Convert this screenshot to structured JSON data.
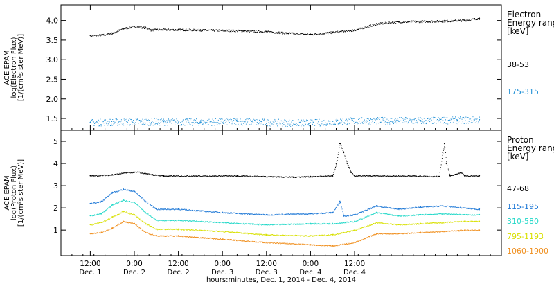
{
  "chart_data": [
    {
      "type": "scatter",
      "panel": "electron",
      "ylabel_lines": [
        "ACE EPAM",
        "log(Electron Flux)",
        "[1/(cm²s ster MeV)]"
      ],
      "ylim": [
        1.2,
        4.4
      ],
      "yticks": [
        1.5,
        2.0,
        2.5,
        3.0,
        3.5,
        4.0
      ],
      "ytick_labels": [
        "1.5",
        "2.0",
        "2.5",
        "3.0",
        "3.5",
        "4.0"
      ],
      "legend_title_lines": [
        "Electron",
        "Energy ranges",
        "[keV]"
      ],
      "series": [
        {
          "name": "38-53",
          "color": "#000000",
          "points": [
            [
              0,
              3.62
            ],
            [
              3,
              3.63
            ],
            [
              6,
              3.68
            ],
            [
              9,
              3.8
            ],
            [
              12,
              3.85
            ],
            [
              15,
              3.82
            ],
            [
              16.5,
              3.76
            ],
            [
              18,
              3.77
            ],
            [
              24,
              3.77
            ],
            [
              30,
              3.76
            ],
            [
              36,
              3.75
            ],
            [
              42,
              3.74
            ],
            [
              48,
              3.72
            ],
            [
              54,
              3.68
            ],
            [
              60,
              3.65
            ],
            [
              66,
              3.7
            ],
            [
              72,
              3.76
            ],
            [
              78,
              3.92
            ],
            [
              84,
              3.97
            ],
            [
              90,
              3.98
            ],
            [
              96,
              3.99
            ],
            [
              102,
              4.01
            ],
            [
              106,
              4.06
            ]
          ]
        },
        {
          "name": "175-315",
          "color": "#1e8fd6",
          "points": [
            [
              0,
              1.4
            ],
            [
              10,
              1.42
            ],
            [
              20,
              1.42
            ],
            [
              30,
              1.41
            ],
            [
              40,
              1.43
            ],
            [
              50,
              1.4
            ],
            [
              60,
              1.39
            ],
            [
              70,
              1.44
            ],
            [
              80,
              1.45
            ],
            [
              90,
              1.45
            ],
            [
              100,
              1.46
            ],
            [
              106,
              1.47
            ]
          ]
        }
      ]
    },
    {
      "type": "scatter",
      "panel": "proton",
      "ylabel_lines": [
        "ACE EPAM",
        "log(Proton Flux)",
        "[1/(cm²s ster MeV)]"
      ],
      "ylim": [
        -0.15,
        5.5
      ],
      "yticks": [
        1,
        2,
        3,
        4,
        5
      ],
      "ytick_labels": [
        "1",
        "2",
        "3",
        "4",
        "5"
      ],
      "legend_title_lines": [
        "Proton",
        "Energy ranges",
        "[keV]"
      ],
      "series": [
        {
          "name": "47-68",
          "color": "#000000",
          "points": [
            [
              0,
              3.45
            ],
            [
              6,
              3.5
            ],
            [
              10,
              3.6
            ],
            [
              13,
              3.62
            ],
            [
              17,
              3.5
            ],
            [
              20,
              3.45
            ],
            [
              40,
              3.45
            ],
            [
              55,
              3.4
            ],
            [
              60,
              3.42
            ],
            [
              66,
              3.45
            ],
            [
              67,
              4.0
            ],
            [
              68,
              4.9
            ],
            [
              69,
              4.5
            ],
            [
              70,
              4.0
            ],
            [
              71,
              3.6
            ],
            [
              72,
              3.45
            ],
            [
              88,
              3.45
            ],
            [
              95,
              3.42
            ],
            [
              96,
              4.5
            ],
            [
              96.5,
              4.9
            ],
            [
              97,
              4.0
            ],
            [
              98,
              3.45
            ],
            [
              101,
              3.6
            ],
            [
              102,
              3.45
            ],
            [
              106,
              3.45
            ]
          ]
        },
        {
          "name": "115-195",
          "color": "#1e78d6",
          "points": [
            [
              0,
              2.2
            ],
            [
              3,
              2.3
            ],
            [
              6,
              2.7
            ],
            [
              9,
              2.85
            ],
            [
              12,
              2.75
            ],
            [
              15,
              2.3
            ],
            [
              18,
              1.95
            ],
            [
              24,
              1.95
            ],
            [
              36,
              1.8
            ],
            [
              48,
              1.7
            ],
            [
              60,
              1.75
            ],
            [
              66,
              1.8
            ],
            [
              68,
              2.3
            ],
            [
              69,
              1.65
            ],
            [
              72,
              1.7
            ],
            [
              78,
              2.1
            ],
            [
              84,
              1.95
            ],
            [
              90,
              2.05
            ],
            [
              96,
              2.1
            ],
            [
              102,
              2.0
            ],
            [
              106,
              1.95
            ]
          ]
        },
        {
          "name": "310-580",
          "color": "#22d8c8",
          "points": [
            [
              0,
              1.65
            ],
            [
              3,
              1.75
            ],
            [
              6,
              2.15
            ],
            [
              9,
              2.35
            ],
            [
              12,
              2.25
            ],
            [
              15,
              1.8
            ],
            [
              18,
              1.45
            ],
            [
              24,
              1.45
            ],
            [
              36,
              1.35
            ],
            [
              48,
              1.25
            ],
            [
              60,
              1.3
            ],
            [
              66,
              1.3
            ],
            [
              72,
              1.4
            ],
            [
              78,
              1.8
            ],
            [
              84,
              1.65
            ],
            [
              90,
              1.7
            ],
            [
              96,
              1.75
            ],
            [
              102,
              1.7
            ],
            [
              106,
              1.7
            ]
          ]
        },
        {
          "name": "795-1193",
          "color": "#d8e000",
          "points": [
            [
              0,
              1.25
            ],
            [
              3,
              1.35
            ],
            [
              6,
              1.6
            ],
            [
              9,
              1.85
            ],
            [
              12,
              1.7
            ],
            [
              15,
              1.3
            ],
            [
              18,
              1.05
            ],
            [
              24,
              1.05
            ],
            [
              36,
              0.95
            ],
            [
              48,
              0.8
            ],
            [
              60,
              0.75
            ],
            [
              66,
              0.8
            ],
            [
              72,
              1.0
            ],
            [
              78,
              1.35
            ],
            [
              84,
              1.25
            ],
            [
              90,
              1.3
            ],
            [
              96,
              1.35
            ],
            [
              102,
              1.4
            ],
            [
              106,
              1.4
            ]
          ]
        },
        {
          "name": "1060-1900",
          "color": "#f09020",
          "points": [
            [
              0,
              0.85
            ],
            [
              3,
              0.9
            ],
            [
              6,
              1.1
            ],
            [
              9,
              1.4
            ],
            [
              12,
              1.3
            ],
            [
              15,
              0.9
            ],
            [
              18,
              0.75
            ],
            [
              24,
              0.75
            ],
            [
              36,
              0.6
            ],
            [
              48,
              0.45
            ],
            [
              60,
              0.35
            ],
            [
              66,
              0.3
            ],
            [
              72,
              0.45
            ],
            [
              78,
              0.85
            ],
            [
              84,
              0.85
            ],
            [
              90,
              0.9
            ],
            [
              96,
              0.95
            ],
            [
              102,
              1.0
            ],
            [
              106,
              1.0
            ]
          ]
        }
      ]
    }
  ],
  "x_axis": {
    "range_hours": [
      -8,
      112
    ],
    "ticks": [
      {
        "hour": 0,
        "time": "12:00",
        "date": "Dec. 1"
      },
      {
        "hour": 12,
        "time": "0:00",
        "date": "Dec. 2"
      },
      {
        "hour": 24,
        "time": "12:00",
        "date": "Dec. 2"
      },
      {
        "hour": 36,
        "time": "0:00",
        "date": "Dec. 3"
      },
      {
        "hour": 48,
        "time": "12:00",
        "date": "Dec. 3"
      },
      {
        "hour": 60,
        "time": "0:00",
        "date": "Dec. 4"
      },
      {
        "hour": 72,
        "time": "12:00",
        "date": "Dec. 4"
      }
    ],
    "label": "hours:minutes, Dec.  1, 2014 - Dec.  4, 2014"
  }
}
